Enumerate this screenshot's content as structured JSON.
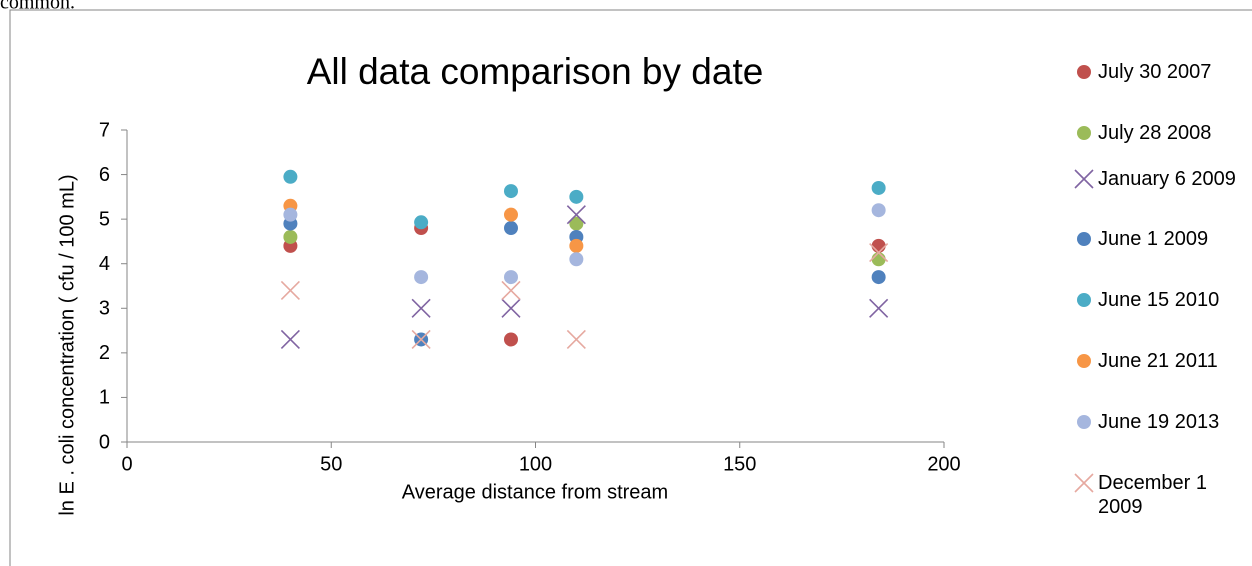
{
  "page_text": "common.",
  "chart_data": {
    "type": "scatter",
    "title": "All data comparison by date",
    "x_label": "Average distance from stream",
    "y_label": "ln E . coli concentration ( cfu / 100 mL)",
    "x": [
      40,
      72,
      94,
      110,
      184
    ],
    "xlim": [
      0,
      200
    ],
    "xticks": [
      0,
      50,
      100,
      150,
      200
    ],
    "ylim": [
      0,
      7
    ],
    "yticks": [
      0,
      1,
      2,
      3,
      4,
      5,
      6,
      7
    ],
    "grid": false,
    "legend": "right",
    "series": [
      {
        "name": "July 30 2007",
        "color": "#c0504d",
        "marker": "circle",
        "values": [
          4.4,
          4.8,
          2.3,
          null,
          4.4
        ]
      },
      {
        "name": "July 28 2008",
        "color": "#9bbb59",
        "marker": "circle",
        "values": [
          4.6,
          null,
          null,
          4.9,
          4.1
        ]
      },
      {
        "name": "January 6 2009",
        "color": "#8064a2",
        "marker": "x",
        "values": [
          2.3,
          3.0,
          3.0,
          5.1,
          3.0
        ]
      },
      {
        "name": "June 1 2009",
        "color": "#4f81bd",
        "marker": "circle",
        "values": [
          4.9,
          2.3,
          4.8,
          4.6,
          3.7
        ]
      },
      {
        "name": "June 15 2010",
        "color": "#4bacc6",
        "marker": "circle",
        "values": [
          5.95,
          4.93,
          5.63,
          5.5,
          5.7
        ]
      },
      {
        "name": "June 21 2011",
        "color": "#f79646",
        "marker": "circle",
        "values": [
          5.3,
          null,
          5.1,
          4.4,
          null
        ]
      },
      {
        "name": "June 19 2013",
        "color": "#a5b6de",
        "marker": "circle",
        "values": [
          5.1,
          3.7,
          3.7,
          4.1,
          5.2
        ]
      },
      {
        "name": "December 1 2009",
        "color": "#e6a9a0",
        "marker": "x",
        "values": [
          3.4,
          2.3,
          3.4,
          2.3,
          4.25
        ]
      }
    ]
  }
}
